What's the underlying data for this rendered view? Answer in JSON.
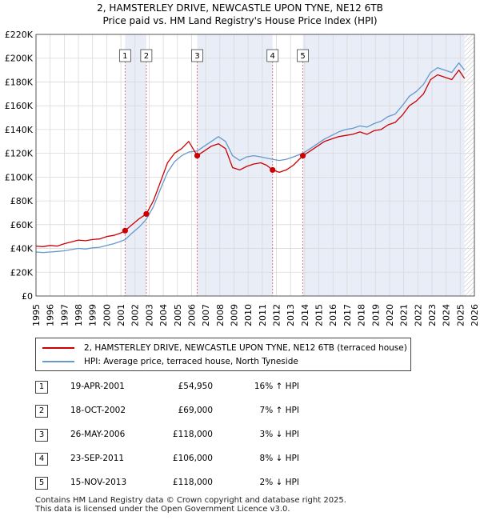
{
  "header": {
    "title": "2, HAMSTERLEY DRIVE, NEWCASTLE UPON TYNE, NE12 6TB",
    "subtitle": "Price paid vs. HM Land Registry's House Price Index (HPI)"
  },
  "chart_data": {
    "type": "line",
    "title": "2, HAMSTERLEY DRIVE, NEWCASTLE UPON TYNE, NE12 6TB",
    "subtitle": "Price paid vs. HM Land Registry's House Price Index (HPI)",
    "xlim": [
      1995,
      2026
    ],
    "ylim": [
      0,
      220000
    ],
    "y_ticks": [
      0,
      20000,
      40000,
      60000,
      80000,
      100000,
      120000,
      140000,
      160000,
      180000,
      200000,
      220000
    ],
    "y_tick_labels": [
      "£0",
      "£20K",
      "£40K",
      "£60K",
      "£80K",
      "£100K",
      "£120K",
      "£140K",
      "£160K",
      "£180K",
      "£200K",
      "£220K"
    ],
    "x_ticks": [
      1995,
      1996,
      1997,
      1998,
      1999,
      2000,
      2001,
      2002,
      2003,
      2004,
      2005,
      2006,
      2007,
      2008,
      2009,
      2010,
      2011,
      2012,
      2013,
      2014,
      2015,
      2016,
      2017,
      2018,
      2019,
      2020,
      2021,
      2022,
      2023,
      2024,
      2025,
      2026
    ],
    "x_tick_labels": [
      "1995",
      "1996",
      "1997",
      "1998",
      "1999",
      "2000",
      "2001",
      "2002",
      "2003",
      "2004",
      "2005",
      "2006",
      "2007",
      "2008",
      "2009",
      "2010",
      "2011",
      "2012",
      "2013",
      "2014",
      "2015",
      "2016",
      "2017",
      "2018",
      "2019",
      "2020",
      "2021",
      "2022",
      "2023",
      "2024",
      "2025",
      "2026"
    ],
    "grid": true,
    "shaded_periods": [
      [
        2001.3,
        2002.8
      ],
      [
        2006.4,
        2011.73
      ],
      [
        2013.87,
        2025.3
      ]
    ],
    "series": [
      {
        "name": "2, HAMSTERLEY DRIVE, NEWCASTLE UPON TYNE, NE12 6TB (terraced house)",
        "color": "#cc0000",
        "x": [
          1995.0,
          1995.5,
          1996.0,
          1996.5,
          1997.0,
          1997.5,
          1998.0,
          1998.5,
          1999.0,
          1999.5,
          2000.0,
          2000.5,
          2001.0,
          2001.3,
          2001.8,
          2002.3,
          2002.8,
          2003.3,
          2003.8,
          2004.3,
          2004.8,
          2005.3,
          2005.8,
          2006.4,
          2006.9,
          2007.4,
          2007.9,
          2008.4,
          2008.9,
          2009.4,
          2009.9,
          2010.4,
          2010.9,
          2011.3,
          2011.73,
          2012.2,
          2012.7,
          2013.2,
          2013.87,
          2014.4,
          2014.9,
          2015.4,
          2015.9,
          2016.4,
          2016.9,
          2017.4,
          2017.9,
          2018.4,
          2018.9,
          2019.4,
          2019.9,
          2020.4,
          2020.9,
          2021.4,
          2021.9,
          2022.4,
          2022.9,
          2023.4,
          2023.9,
          2024.4,
          2024.9,
          2025.3
        ],
        "y": [
          42000,
          41500,
          42500,
          42000,
          44000,
          45500,
          47000,
          46500,
          47500,
          48000,
          50000,
          51000,
          53000,
          54950,
          60000,
          65000,
          69000,
          80000,
          96000,
          112000,
          120000,
          124000,
          130000,
          118000,
          122000,
          126000,
          128000,
          124000,
          108000,
          106000,
          109000,
          111000,
          112000,
          110000,
          106000,
          104000,
          106000,
          110000,
          118000,
          122000,
          126000,
          130000,
          132000,
          134000,
          135000,
          136000,
          138000,
          136000,
          139000,
          140000,
          144000,
          146000,
          152000,
          160000,
          164000,
          170000,
          182000,
          186000,
          184000,
          182000,
          190000,
          183000
        ]
      },
      {
        "name": "HPI: Average price, terraced house, North Tyneside",
        "color": "#6699cc",
        "x": [
          1995.0,
          1995.5,
          1996.0,
          1996.5,
          1997.0,
          1997.5,
          1998.0,
          1998.5,
          1999.0,
          1999.5,
          2000.0,
          2000.5,
          2001.0,
          2001.3,
          2001.8,
          2002.3,
          2002.8,
          2003.3,
          2003.8,
          2004.3,
          2004.8,
          2005.3,
          2005.8,
          2006.4,
          2006.9,
          2007.4,
          2007.9,
          2008.4,
          2008.9,
          2009.4,
          2009.9,
          2010.4,
          2010.9,
          2011.3,
          2011.73,
          2012.2,
          2012.7,
          2013.2,
          2013.87,
          2014.4,
          2014.9,
          2015.4,
          2015.9,
          2016.4,
          2016.9,
          2017.4,
          2017.9,
          2018.4,
          2018.9,
          2019.4,
          2019.9,
          2020.4,
          2020.9,
          2021.4,
          2021.9,
          2022.4,
          2022.9,
          2023.4,
          2023.9,
          2024.4,
          2024.9,
          2025.3
        ],
        "y": [
          37000,
          36500,
          37000,
          37500,
          38000,
          39000,
          40000,
          39500,
          40500,
          41000,
          42500,
          44000,
          46000,
          47400,
          53000,
          58000,
          64500,
          75000,
          90000,
          104000,
          113000,
          118000,
          121000,
          122000,
          126000,
          130000,
          134000,
          130000,
          118000,
          114000,
          117000,
          118000,
          117000,
          116000,
          115000,
          114000,
          115000,
          117000,
          120000,
          124000,
          128000,
          132000,
          135000,
          138000,
          140000,
          141000,
          143000,
          142000,
          145000,
          147000,
          151000,
          153000,
          160000,
          168000,
          172000,
          178000,
          188000,
          192000,
          190000,
          188000,
          196000,
          190000
        ]
      }
    ],
    "sale_markers": [
      {
        "label": "1",
        "x": 2001.3,
        "y": 54950
      },
      {
        "label": "2",
        "x": 2002.8,
        "y": 69000
      },
      {
        "label": "3",
        "x": 2006.4,
        "y": 118000
      },
      {
        "label": "4",
        "x": 2011.73,
        "y": 106000
      },
      {
        "label": "5",
        "x": 2013.87,
        "y": 118000
      }
    ]
  },
  "legend": {
    "items": [
      {
        "label": "2, HAMSTERLEY DRIVE, NEWCASTLE UPON TYNE, NE12 6TB (terraced house)",
        "color": "#cc0000"
      },
      {
        "label": "HPI: Average price, terraced house, North Tyneside",
        "color": "#6699cc"
      }
    ]
  },
  "sales": [
    {
      "num": "1",
      "date": "19-APR-2001",
      "price": "£54,950",
      "hpi": "16% ↑ HPI"
    },
    {
      "num": "2",
      "date": "18-OCT-2002",
      "price": "£69,000",
      "hpi": "7% ↑ HPI"
    },
    {
      "num": "3",
      "date": "26-MAY-2006",
      "price": "£118,000",
      "hpi": "3% ↓ HPI"
    },
    {
      "num": "4",
      "date": "23-SEP-2011",
      "price": "£106,000",
      "hpi": "8% ↓ HPI"
    },
    {
      "num": "5",
      "date": "15-NOV-2013",
      "price": "£118,000",
      "hpi": "2% ↓ HPI"
    }
  ],
  "footer": {
    "line1": "Contains HM Land Registry data © Crown copyright and database right 2025.",
    "line2": "This data is licensed under the Open Government Licence v3.0."
  }
}
